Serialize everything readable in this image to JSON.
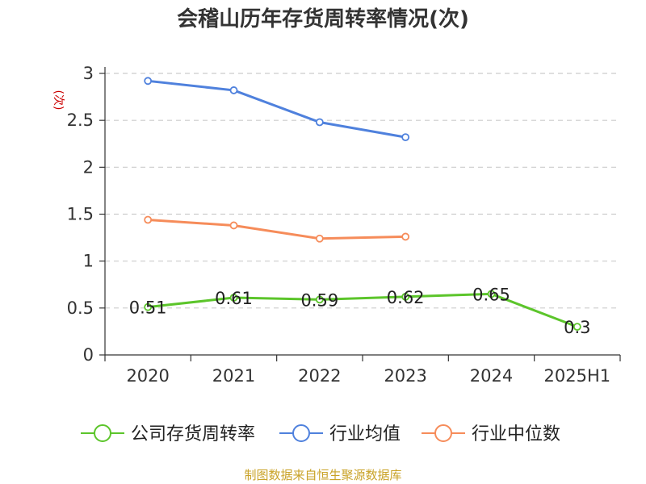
{
  "chart_data": {
    "type": "line",
    "title": "会稽山历年存货周转率情况(次)",
    "ylabel": "(次)",
    "xlabel": "",
    "categories": [
      "2020",
      "2021",
      "2022",
      "2023",
      "2024",
      "2025H1"
    ],
    "ylim": [
      0,
      3
    ],
    "yticks": [
      0,
      0.5,
      1,
      1.5,
      2,
      2.5,
      3
    ],
    "ytick_labels": [
      "0",
      "0.5",
      "1",
      "1.5",
      "2",
      "2.5",
      "3"
    ],
    "grid": true,
    "legend_position": "bottom",
    "series": [
      {
        "name": "公司存货周转率",
        "color": "#5cc52b",
        "values": [
          0.51,
          0.61,
          0.59,
          0.62,
          0.65,
          0.3
        ],
        "labels": [
          "0.51",
          "0.61",
          "0.59",
          "0.62",
          "0.65",
          "0.3"
        ]
      },
      {
        "name": "行业均值",
        "color": "#4f81dd",
        "values": [
          2.92,
          2.82,
          2.48,
          2.32,
          null,
          null
        ]
      },
      {
        "name": "行业中位数",
        "color": "#f68c5a",
        "values": [
          1.44,
          1.38,
          1.24,
          1.26,
          null,
          null
        ]
      }
    ],
    "source": "制图数据来自恒生聚源数据库"
  },
  "colors": {
    "title": "#333333",
    "axis": "#333333",
    "grid": "#cccccc",
    "ylabel": "#cc0000",
    "source": "#c9a227"
  }
}
